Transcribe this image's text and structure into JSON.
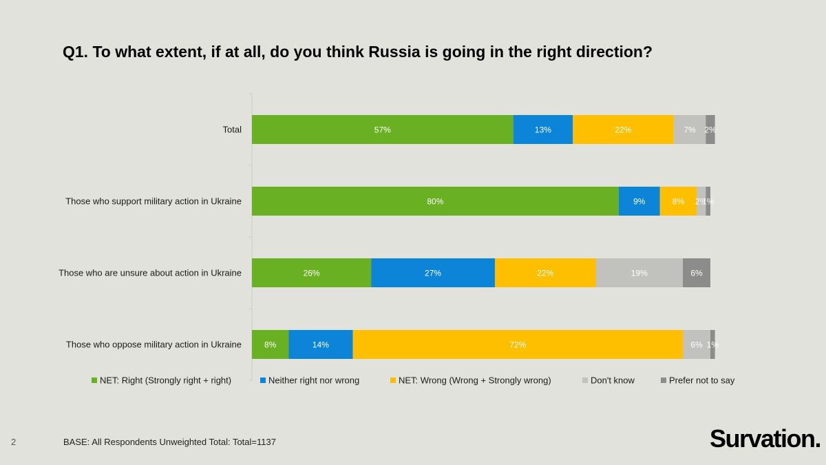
{
  "slide": {
    "title": "Q1. To what extent, if at all, do you think Russia is going in the right direction?",
    "page_number": "2",
    "base_note": "BASE: All Respondents Unweighted Total: Total=1137",
    "brand": "Survation."
  },
  "chart_data": {
    "type": "bar",
    "orientation": "horizontal",
    "stacked": true,
    "title": "Q1. To what extent, if at all, do you think Russia is going in the right direction?",
    "xlabel": "",
    "ylabel": "",
    "xlim": [
      0,
      100
    ],
    "unit": "%",
    "legend_position": "bottom",
    "grid": false,
    "categories": [
      "Total",
      "Those who support military action in Ukraine",
      "Those who are unsure about action in Ukraine",
      "Those who oppose military action in Ukraine"
    ],
    "series": [
      {
        "name": "NET: Right (Strongly right + right)",
        "color": "#6ab023",
        "values": [
          57,
          80,
          26,
          8
        ]
      },
      {
        "name": "Neither right nor wrong",
        "color": "#0c84d8",
        "values": [
          13,
          9,
          27,
          14
        ]
      },
      {
        "name": "NET: Wrong (Wrong + Strongly wrong)",
        "color": "#fdbf00",
        "values": [
          22,
          8,
          22,
          72
        ]
      },
      {
        "name": "Don't know",
        "color": "#c1c1bd",
        "values": [
          7,
          2,
          19,
          6
        ]
      },
      {
        "name": "Prefer not to say",
        "color": "#8c8c8a",
        "values": [
          2,
          1,
          6,
          1
        ]
      }
    ]
  }
}
